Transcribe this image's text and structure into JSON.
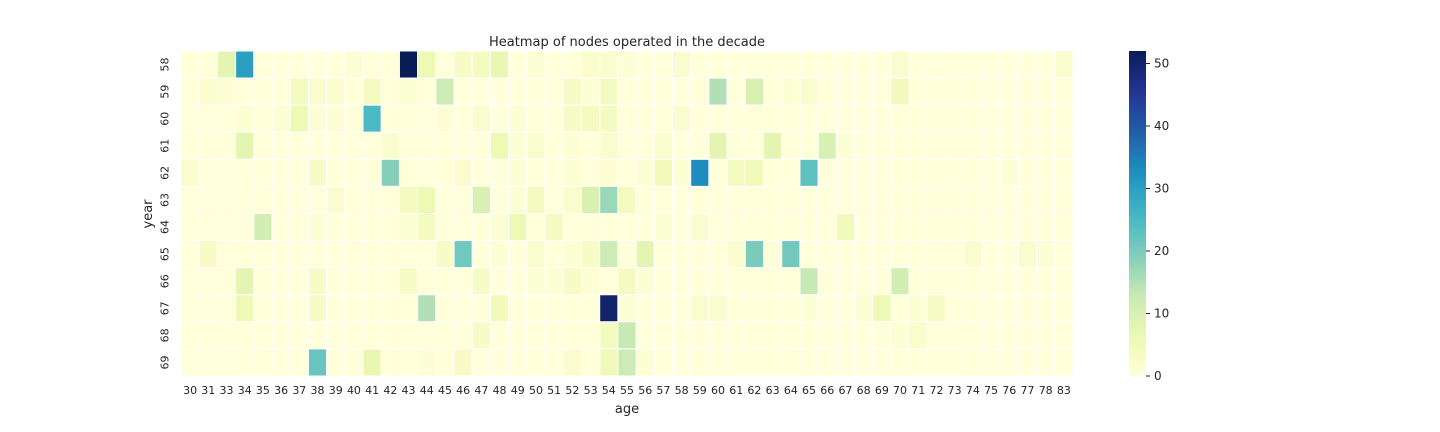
{
  "chart_data": {
    "type": "heatmap",
    "title": "Heatmap of nodes operated in the decade",
    "xlabel": "age",
    "ylabel": "year",
    "x": [
      "30",
      "31",
      "33",
      "34",
      "35",
      "36",
      "37",
      "38",
      "39",
      "40",
      "41",
      "42",
      "43",
      "44",
      "45",
      "46",
      "47",
      "48",
      "49",
      "50",
      "51",
      "52",
      "53",
      "54",
      "55",
      "56",
      "57",
      "58",
      "59",
      "60",
      "61",
      "62",
      "63",
      "64",
      "65",
      "66",
      "67",
      "68",
      "69",
      "70",
      "71",
      "72",
      "73",
      "74",
      "75",
      "76",
      "77",
      "78",
      "83"
    ],
    "y": [
      "58",
      "59",
      "60",
      "61",
      "62",
      "63",
      "64",
      "65",
      "66",
      "67",
      "68",
      "69"
    ],
    "values": [
      [
        0,
        0,
        8,
        30,
        0,
        0,
        0,
        0,
        0,
        1,
        0,
        0,
        52,
        6,
        0,
        3,
        4,
        7,
        0,
        1,
        0,
        0,
        2,
        2,
        1,
        0,
        0,
        2,
        0,
        0,
        0,
        0,
        0,
        0,
        0,
        0,
        0,
        0,
        0,
        2,
        0,
        0,
        0,
        0,
        0,
        0,
        0,
        0,
        2
      ],
      [
        0,
        2,
        1,
        0,
        0,
        0,
        4,
        2,
        2,
        0,
        4,
        0,
        1,
        0,
        12,
        0,
        0,
        0,
        0,
        0,
        0,
        3,
        1,
        4,
        0,
        0,
        0,
        0,
        0,
        15,
        0,
        10,
        0,
        1,
        2,
        0,
        0,
        0,
        0,
        5,
        0,
        0,
        0,
        0,
        0,
        0,
        0,
        0,
        0
      ],
      [
        0,
        0,
        0,
        1,
        0,
        1,
        6,
        1,
        1,
        0,
        25,
        0,
        0,
        0,
        1,
        0,
        2,
        0,
        1,
        0,
        0,
        3,
        4,
        4,
        0,
        0,
        0,
        2,
        0,
        0,
        0,
        0,
        0,
        0,
        0,
        0,
        0,
        0,
        0,
        0,
        0,
        0,
        0,
        0,
        0,
        0,
        0,
        0,
        0
      ],
      [
        0,
        0,
        0,
        8,
        0,
        0,
        0,
        0,
        0,
        0,
        0,
        2,
        0,
        0,
        0,
        0,
        0,
        6,
        1,
        2,
        0,
        1,
        0,
        2,
        0,
        0,
        2,
        0,
        0,
        8,
        0,
        0,
        8,
        0,
        0,
        10,
        1,
        0,
        0,
        0,
        0,
        0,
        0,
        0,
        0,
        0,
        0,
        0,
        0
      ],
      [
        2,
        0,
        0,
        0,
        0,
        0,
        0,
        3,
        0,
        0,
        0,
        19,
        0,
        0,
        0,
        2,
        0,
        0,
        1,
        0,
        0,
        1,
        0,
        1,
        0,
        1,
        5,
        1,
        33,
        0,
        4,
        5,
        0,
        0,
        23,
        0,
        0,
        0,
        0,
        0,
        0,
        0,
        0,
        0,
        0,
        1,
        0,
        0,
        0
      ],
      [
        0,
        0,
        0,
        0,
        0,
        0,
        0,
        0,
        2,
        0,
        0,
        0,
        4,
        6,
        0,
        0,
        10,
        0,
        1,
        4,
        0,
        2,
        10,
        17,
        4,
        0,
        0,
        0,
        0,
        0,
        0,
        0,
        0,
        0,
        0,
        0,
        0,
        0,
        0,
        0,
        0,
        0,
        0,
        0,
        0,
        0,
        0,
        0,
        0
      ],
      [
        0,
        0,
        0,
        0,
        11,
        0,
        0,
        1,
        0,
        0,
        0,
        0,
        1,
        4,
        0,
        0,
        0,
        1,
        6,
        0,
        4,
        0,
        0,
        0,
        0,
        0,
        1,
        0,
        2,
        0,
        0,
        0,
        0,
        0,
        0,
        0,
        5,
        0,
        0,
        0,
        0,
        0,
        0,
        0,
        0,
        0,
        0,
        0,
        0
      ],
      [
        0,
        3,
        0,
        0,
        0,
        0,
        0,
        0,
        0,
        0,
        0,
        0,
        0,
        0,
        3,
        21,
        0,
        1,
        0,
        2,
        0,
        1,
        3,
        12,
        0,
        8,
        0,
        0,
        0,
        0,
        2,
        20,
        0,
        21,
        0,
        0,
        0,
        0,
        0,
        0,
        0,
        0,
        0,
        2,
        0,
        0,
        2,
        1,
        0
      ],
      [
        0,
        0,
        0,
        8,
        0,
        0,
        0,
        3,
        0,
        0,
        0,
        0,
        3,
        0,
        0,
        0,
        3,
        0,
        0,
        1,
        1,
        3,
        1,
        0,
        4,
        1,
        0,
        0,
        0,
        0,
        0,
        0,
        0,
        0,
        13,
        0,
        0,
        0,
        0,
        11,
        0,
        0,
        0,
        0,
        0,
        0,
        0,
        0,
        0
      ],
      [
        0,
        0,
        0,
        6,
        0,
        0,
        0,
        3,
        0,
        0,
        0,
        0,
        0,
        15,
        0,
        0,
        0,
        5,
        0,
        0,
        0,
        0,
        0,
        50,
        1,
        0,
        0,
        0,
        2,
        2,
        0,
        0,
        0,
        0,
        1,
        0,
        0,
        1,
        6,
        0,
        1,
        3,
        0,
        0,
        0,
        0,
        0,
        0,
        0
      ],
      [
        0,
        0,
        0,
        0,
        0,
        0,
        0,
        0,
        0,
        0,
        0,
        0,
        0,
        0,
        0,
        0,
        3,
        0,
        0,
        0,
        0,
        0,
        0,
        4,
        13,
        0,
        0,
        0,
        0,
        0,
        0,
        0,
        0,
        0,
        0,
        0,
        0,
        0,
        0,
        1,
        2,
        0,
        0,
        0,
        0,
        0,
        0,
        0,
        0
      ],
      [
        0,
        0,
        0,
        0,
        0,
        0,
        0,
        22,
        0,
        0,
        7,
        0,
        0,
        1,
        0,
        3,
        0,
        0,
        0,
        0,
        0,
        2,
        0,
        5,
        12,
        1,
        0,
        0,
        0,
        0,
        0,
        0,
        0,
        0,
        0,
        0,
        0,
        0,
        0,
        0,
        0,
        0,
        0,
        0,
        0,
        0,
        0,
        0,
        0
      ]
    ],
    "vmin": 0,
    "vmax": 52,
    "colormap": "YlGnBu",
    "colorbar_ticks": [
      0,
      10,
      20,
      30,
      40,
      50
    ],
    "cell_border_color": "#ffffff"
  }
}
